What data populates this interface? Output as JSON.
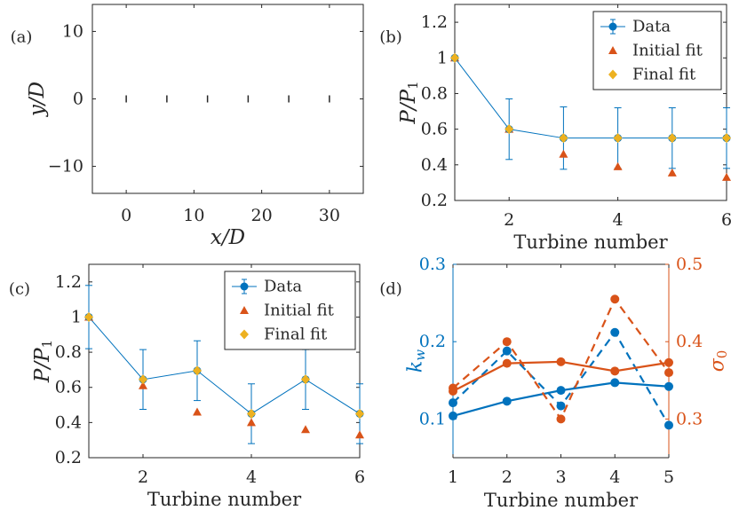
{
  "colors": {
    "blue": "#0072BD",
    "orange": "#D95319",
    "yellow": "#EDB120",
    "axis": "#262626"
  },
  "chart_data": [
    {
      "panel": "(a)",
      "type": "scatter",
      "xlabel": "x/D",
      "ylabel": "y/D",
      "xlim": [
        -5,
        35
      ],
      "ylim": [
        -14,
        14
      ],
      "xticks": [
        0,
        10,
        20,
        30
      ],
      "yticks": [
        -10,
        0,
        10
      ],
      "marker": "short vertical line (turbine rotor)",
      "turbines": [
        {
          "x": 0,
          "y": 0
        },
        {
          "x": 6,
          "y": 0
        },
        {
          "x": 12,
          "y": 0
        },
        {
          "x": 18,
          "y": 0
        },
        {
          "x": 24,
          "y": 0
        },
        {
          "x": 30,
          "y": 0
        }
      ]
    },
    {
      "panel": "(b)",
      "type": "line",
      "xlabel": "Turbine number",
      "ylabel": "P/P1",
      "xlim": [
        1,
        6
      ],
      "ylim": [
        0.2,
        1.3
      ],
      "xticks": [
        2,
        4,
        6
      ],
      "yticks": [
        0.2,
        0.4,
        0.6,
        0.8,
        1,
        1.2
      ],
      "legend_position": "top-right",
      "x": [
        1,
        2,
        3,
        4,
        5,
        6
      ],
      "series": [
        {
          "name": "Data",
          "style": "line+circle+errorbar",
          "values": [
            1.0,
            0.6,
            0.55,
            0.55,
            0.55,
            0.55
          ],
          "err": [
            0.0,
            0.17,
            0.175,
            0.17,
            0.17,
            0.17
          ]
        },
        {
          "name": "Initial fit",
          "style": "triangle",
          "values": [
            1.0,
            0.6,
            0.46,
            0.39,
            0.355,
            0.33
          ]
        },
        {
          "name": "Final fit",
          "style": "diamond",
          "values": [
            1.0,
            0.6,
            0.55,
            0.55,
            0.55,
            0.55
          ]
        }
      ]
    },
    {
      "panel": "(c)",
      "type": "line",
      "xlabel": "Turbine number",
      "ylabel": "P/P1",
      "xlim": [
        1,
        6
      ],
      "ylim": [
        0.2,
        1.3
      ],
      "xticks": [
        2,
        4,
        6
      ],
      "yticks": [
        0.2,
        0.4,
        0.6,
        0.8,
        1,
        1.2
      ],
      "legend_position": "top-right",
      "x": [
        1,
        2,
        3,
        4,
        5,
        6
      ],
      "series": [
        {
          "name": "Data",
          "style": "line+circle+errorbar",
          "values": [
            1.0,
            0.645,
            0.695,
            0.45,
            0.645,
            0.45
          ],
          "err": [
            0.18,
            0.17,
            0.17,
            0.17,
            0.17,
            0.17
          ]
        },
        {
          "name": "Initial fit",
          "style": "triangle",
          "values": [
            1.0,
            0.61,
            0.46,
            0.4,
            0.36,
            0.33
          ]
        },
        {
          "name": "Final fit",
          "style": "diamond",
          "values": [
            1.0,
            0.645,
            0.695,
            0.45,
            0.645,
            0.45
          ]
        }
      ]
    },
    {
      "panel": "(d)",
      "type": "line",
      "xlabel": "Turbine number",
      "ylabel_left": "k_w",
      "ylabel_right": "σ_0",
      "xlim": [
        1,
        5
      ],
      "ylim_left": [
        0.05,
        0.3
      ],
      "ylim_right": [
        0.25,
        0.5
      ],
      "xticks": [
        1,
        2,
        3,
        4,
        5
      ],
      "yticks_left": [
        0.1,
        0.2,
        0.3
      ],
      "yticks_right": [
        0.3,
        0.4,
        0.5
      ],
      "x": [
        1,
        2,
        3,
        4,
        5
      ],
      "series": [
        {
          "axis": "left",
          "color": "blue",
          "dash": false,
          "values": [
            0.104,
            0.123,
            0.137,
            0.147,
            0.142
          ]
        },
        {
          "axis": "left",
          "color": "blue",
          "dash": true,
          "values": [
            0.121,
            0.188,
            0.117,
            0.212,
            0.092
          ]
        },
        {
          "axis": "right",
          "color": "orange",
          "dash": false,
          "values": [
            0.336,
            0.372,
            0.374,
            0.362,
            0.373
          ]
        },
        {
          "axis": "right",
          "color": "orange",
          "dash": true,
          "values": [
            0.34,
            0.4,
            0.3,
            0.455,
            0.36
          ]
        }
      ]
    }
  ]
}
